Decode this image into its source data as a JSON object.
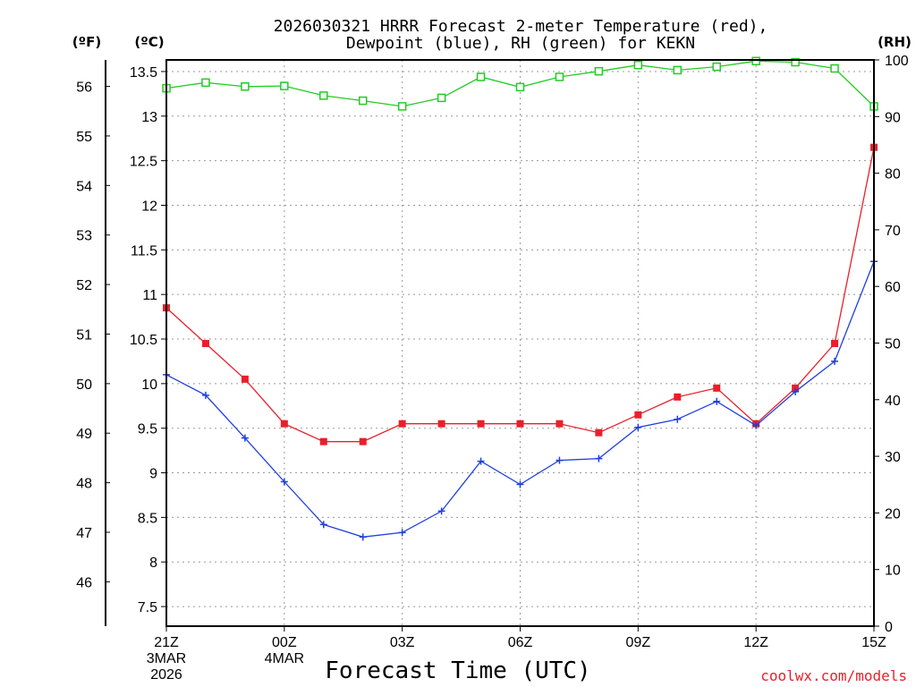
{
  "chart_data": {
    "type": "line",
    "title": [
      "2026030321 HRRR Forecast 2-meter Temperature (red),",
      "Dewpoint (blue), RH (green) for KEKN"
    ],
    "xlabel": "Forecast Time (UTC)",
    "credit": "coolwx.com/models",
    "units": {
      "f": "(ºF)",
      "c": "(ºC)",
      "rh": "(RH)"
    },
    "x_hours": [
      0,
      1,
      2,
      3,
      4,
      5,
      6,
      7,
      8,
      9,
      10,
      11,
      12,
      13,
      14,
      15,
      16,
      17,
      18
    ],
    "x_ticks": [
      {
        "hour": 0,
        "label": "21Z",
        "sub": [
          "3MAR",
          "2026"
        ]
      },
      {
        "hour": 3,
        "label": "00Z",
        "sub": [
          "4MAR"
        ]
      },
      {
        "hour": 6,
        "label": "03Z",
        "sub": []
      },
      {
        "hour": 9,
        "label": "06Z",
        "sub": []
      },
      {
        "hour": 12,
        "label": "09Z",
        "sub": []
      },
      {
        "hour": 15,
        "label": "12Z",
        "sub": []
      },
      {
        "hour": 18,
        "label": "15Z",
        "sub": []
      }
    ],
    "ylim_c": [
      7.28,
      13.63
    ],
    "ylim_rh": [
      0,
      100
    ],
    "yticks_c": [
      "7.5",
      "8",
      "8.5",
      "9",
      "9.5",
      "10",
      "10.5",
      "11",
      "11.5",
      "12",
      "12.5",
      "13",
      "13.5"
    ],
    "yticks_f": [
      "46",
      "47",
      "48",
      "49",
      "50",
      "51",
      "52",
      "53",
      "54",
      "55",
      "56"
    ],
    "yticks_rh": [
      "0",
      "10",
      "20",
      "30",
      "40",
      "50",
      "60",
      "70",
      "80",
      "90",
      "100"
    ],
    "grid": true,
    "series": [
      {
        "name": "Temperature",
        "color": "#e8202a",
        "marker": "filled-square",
        "axis": "c",
        "values": [
          10.85,
          10.45,
          10.05,
          9.55,
          9.35,
          9.35,
          9.55,
          9.55,
          9.55,
          9.55,
          9.55,
          9.45,
          9.65,
          9.85,
          9.95,
          9.55,
          9.95,
          10.45,
          12.65
        ]
      },
      {
        "name": "Dewpoint",
        "color": "#1f3fe0",
        "marker": "plus",
        "axis": "c",
        "values": [
          10.1,
          9.87,
          9.39,
          8.9,
          8.42,
          8.28,
          8.33,
          8.57,
          9.13,
          8.87,
          9.14,
          9.16,
          9.51,
          9.6,
          9.8,
          9.53,
          9.91,
          10.25,
          11.37
        ]
      },
      {
        "name": "RH",
        "color": "#22cc22",
        "marker": "open-square",
        "axis": "rh",
        "values": [
          95,
          96,
          95.3,
          95.4,
          93.7,
          92.8,
          91.8,
          93.3,
          97,
          95.2,
          97,
          98,
          99.1,
          98.2,
          98.8,
          99.8,
          99.6,
          98.5,
          91.8
        ]
      }
    ]
  }
}
